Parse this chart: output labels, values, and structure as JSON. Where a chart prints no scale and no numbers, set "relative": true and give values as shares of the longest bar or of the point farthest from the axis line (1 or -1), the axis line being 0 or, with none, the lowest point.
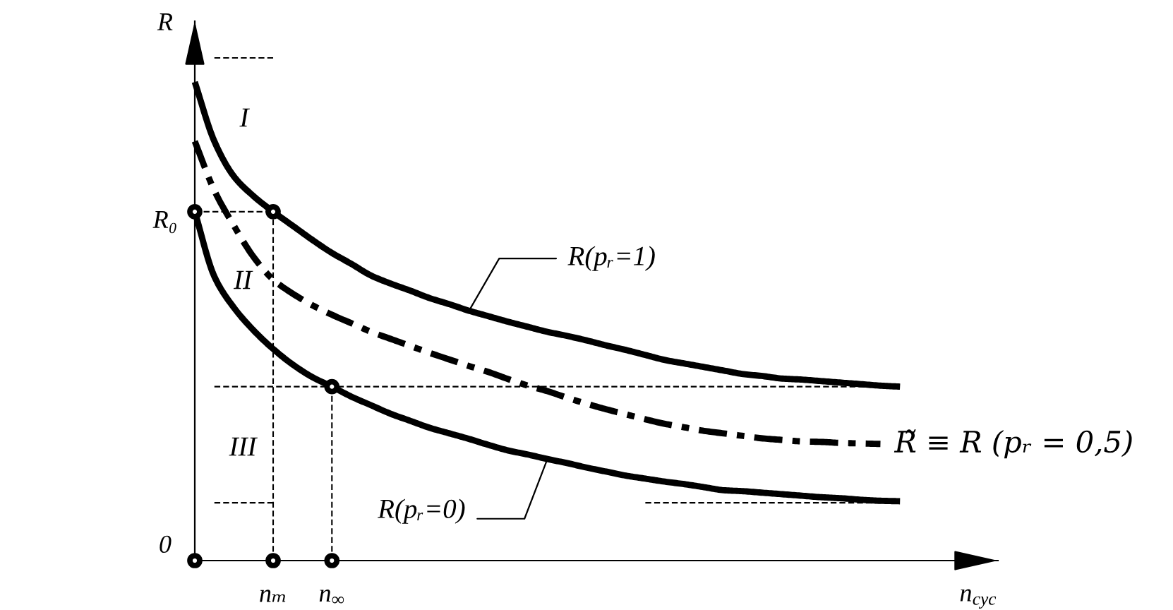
{
  "chart_data": {
    "type": "line",
    "relative": true,
    "ylabel": "R",
    "xlabel": "n$_{cyc}$",
    "categories": [
      null,
      null,
      null,
      null,
      "nₘ",
      null,
      null,
      "n$_{∞}$",
      null,
      null,
      null,
      null,
      null,
      null,
      null,
      null,
      null,
      null,
      null,
      null,
      null,
      null,
      null,
      null,
      null,
      null,
      null,
      null,
      null,
      null,
      null,
      null,
      null,
      null,
      null,
      null,
      null,
      null,
      null,
      null,
      null,
      null
    ],
    "series": [
      {
        "name": "R(pᵣ=1)",
        "color": "#000000",
        "line_style": "solid",
        "values": [
          0.952,
          0.834,
          0.764,
          0.725,
          0.694,
          0.666,
          0.638,
          0.612,
          0.59,
          0.567,
          0.551,
          0.537,
          0.522,
          0.51,
          0.497,
          0.486,
          0.475,
          0.465,
          0.455,
          0.447,
          0.438,
          0.428,
          0.419,
          0.409,
          0.399,
          0.392,
          0.385,
          0.378,
          0.371,
          0.367,
          0.362,
          0.36,
          0.357,
          0.354,
          0.351,
          0.348,
          0.346,
          null,
          null,
          null,
          null,
          null
        ]
      },
      {
        "name": "R̃ ≡ R (pᵣ = 0,5)",
        "color": "#000000",
        "line_style": "dashdot",
        "values": [
          0.834,
          0.736,
          0.666,
          0.604,
          0.559,
          0.531,
          0.508,
          0.489,
          0.472,
          0.455,
          0.441,
          0.427,
          0.413,
          0.4,
          0.387,
          0.375,
          0.361,
          0.348,
          0.337,
          0.324,
          0.312,
          0.301,
          0.291,
          0.281,
          0.272,
          0.265,
          0.258,
          0.253,
          0.248,
          0.243,
          0.24,
          0.237,
          0.236,
          0.234,
          0.233,
          0.232,
          null,
          null,
          null,
          null,
          null,
          null
        ]
      },
      {
        "name": "R(pᵣ=0)",
        "color": "#000000",
        "line_style": "solid",
        "values": [
          0.694,
          0.565,
          0.503,
          0.458,
          0.421,
          0.39,
          0.365,
          0.346,
          0.326,
          0.309,
          0.292,
          0.278,
          0.264,
          0.253,
          0.242,
          0.23,
          0.219,
          0.211,
          0.202,
          0.194,
          0.185,
          0.177,
          0.169,
          0.163,
          0.157,
          0.152,
          0.146,
          0.14,
          0.138,
          0.135,
          0.132,
          0.129,
          0.126,
          0.124,
          0.121,
          0.119,
          0.118,
          null,
          null,
          null,
          null,
          null
        ]
      },
      {
        "color": "#000000",
        "line_style": "dashed",
        "values": [
          null,
          1,
          1,
          1,
          1,
          null,
          null,
          null,
          null,
          null,
          null,
          null,
          null,
          null,
          null,
          null,
          null,
          null,
          null,
          null,
          null,
          null,
          null,
          null,
          null,
          null,
          null,
          null,
          null,
          null,
          null,
          null,
          null,
          null,
          null,
          null,
          null,
          null,
          null,
          null,
          null,
          null
        ]
      },
      {
        "color": "#000000",
        "line_style": "dashed",
        "values": [
          0.694,
          0.694,
          0.694,
          0.694,
          0.694,
          null,
          null,
          null,
          null,
          null,
          null,
          null,
          null,
          null,
          null,
          null,
          null,
          null,
          null,
          null,
          null,
          null,
          null,
          null,
          null,
          null,
          null,
          null,
          null,
          null,
          null,
          null,
          null,
          null,
          null,
          null,
          null,
          null,
          null,
          null,
          null,
          null
        ]
      },
      {
        "color": "#000000",
        "line_style": "dashed",
        "values": [
          null,
          0.346,
          0.346,
          0.346,
          0.346,
          0.346,
          0.346,
          0.346,
          0.346,
          0.346,
          0.346,
          0.346,
          0.346,
          0.346,
          0.346,
          0.346,
          0.346,
          0.346,
          0.346,
          0.346,
          0.346,
          0.346,
          0.346,
          0.346,
          0.346,
          0.346,
          0.346,
          0.346,
          0.346,
          0.346,
          0.346,
          0.346,
          0.346,
          0.346,
          0.346,
          0.346,
          0.346,
          null,
          null,
          null,
          null,
          null
        ]
      },
      {
        "color": "#000000",
        "line_style": "dashed",
        "values": [
          null,
          0.115,
          0.115,
          0.115,
          0.115,
          null,
          null,
          null,
          null,
          null,
          null,
          null,
          null,
          null,
          null,
          null,
          null,
          null,
          null,
          null,
          null,
          null,
          null,
          0.115,
          0.115,
          0.115,
          0.115,
          0.115,
          0.115,
          0.115,
          0.115,
          0.115,
          0.115,
          0.115,
          0.115,
          0.115,
          0.115,
          null,
          null,
          null,
          null,
          null
        ]
      },
      {
        "type": "lollipop",
        "color": "#000000",
        "line_style": "dashed",
        "marker": "circle",
        "values": [
          null,
          null,
          null,
          null,
          0.694,
          null,
          null,
          0.346,
          null,
          null,
          null,
          null,
          null,
          null,
          null,
          null,
          null,
          null,
          null,
          null,
          null,
          null,
          null,
          null,
          null,
          null,
          null,
          null,
          null,
          null,
          null,
          null,
          null,
          null,
          null,
          null,
          null,
          null,
          null,
          null,
          null,
          null
        ]
      },
      {
        "type": "scatter",
        "color": "#000000",
        "marker": "circle",
        "values": [
          0.694,
          null,
          null,
          null,
          null,
          null,
          null,
          null,
          null,
          null,
          null,
          null,
          null,
          null,
          null,
          null,
          null,
          null,
          null,
          null,
          null,
          null,
          null,
          null,
          null,
          null,
          null,
          null,
          null,
          null,
          null,
          null,
          null,
          null,
          null,
          null,
          null,
          null,
          null,
          null,
          null,
          null
        ]
      },
      {
        "type": "scatter",
        "color": "#000000",
        "marker": "circle",
        "values": [
          0,
          null,
          null,
          null,
          0,
          null,
          null,
          0,
          null,
          null,
          null,
          null,
          null,
          null,
          null,
          null,
          null,
          null,
          null,
          null,
          null,
          null,
          null,
          null,
          null,
          null,
          null,
          null,
          null,
          null,
          null,
          null,
          null,
          null,
          null,
          null,
          null,
          null,
          null,
          null,
          null,
          null
        ]
      }
    ],
    "annotations": [
      "0",
      "R₀",
      "I",
      "II",
      "III"
    ]
  }
}
